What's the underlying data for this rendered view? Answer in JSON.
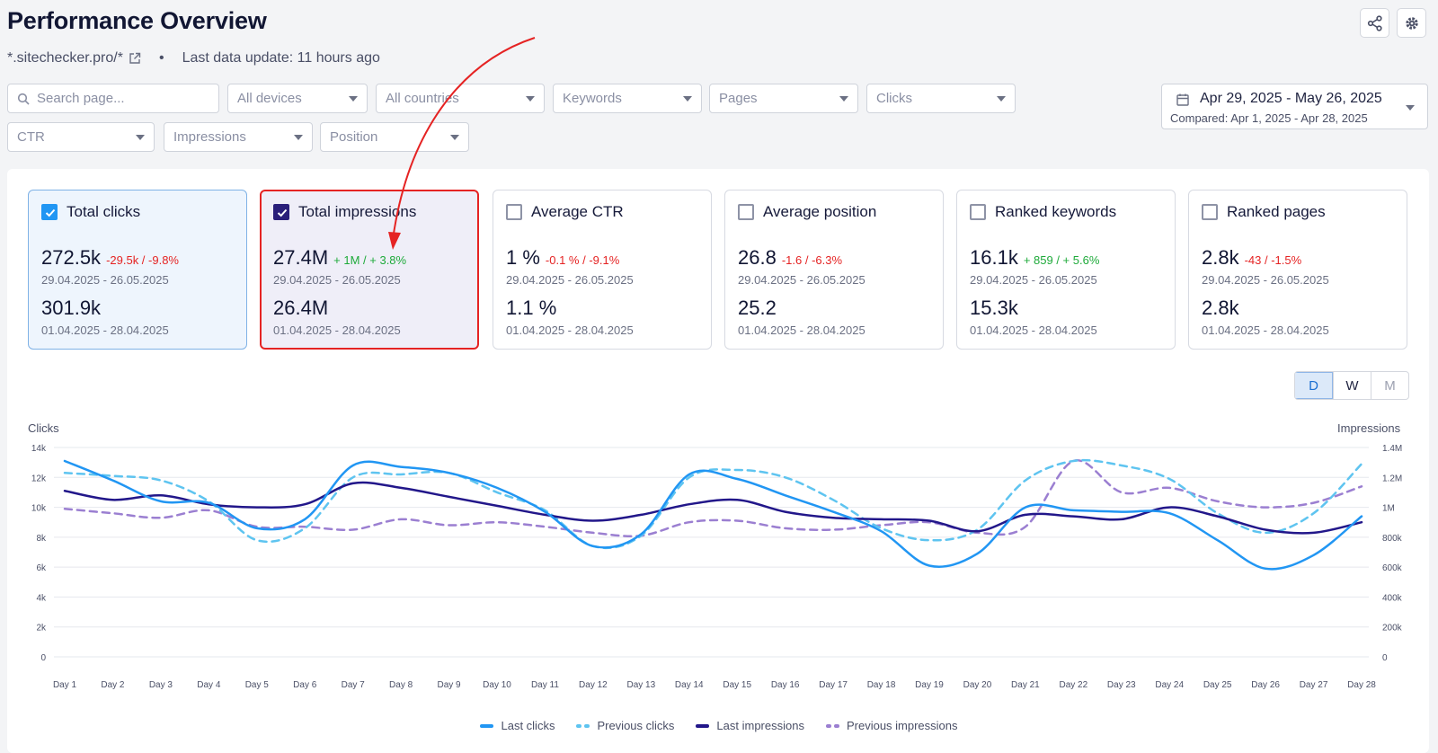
{
  "header": {
    "title": "Performance Overview",
    "site": "*.sitechecker.pro/*",
    "separator": "•",
    "last_update": "Last data update: 11 hours ago"
  },
  "filters": {
    "search_placeholder": "Search page...",
    "devices": "All devices",
    "countries": "All countries",
    "keywords": "Keywords",
    "pages": "Pages",
    "clicks": "Clicks",
    "ctr": "CTR",
    "impressions": "Impressions",
    "position": "Position"
  },
  "date_range": {
    "main": "Apr 29, 2025 - May 26, 2025",
    "compared": "Compared: Apr 1, 2025 - Apr 28, 2025"
  },
  "cards": [
    {
      "title": "Total clicks",
      "checked": true,
      "value": "272.5k",
      "delta": "-29.5k / -9.8%",
      "delta_sign": "neg",
      "period": "29.04.2025 - 26.05.2025",
      "prev_value": "301.9k",
      "prev_period": "01.04.2025 - 28.04.2025"
    },
    {
      "title": "Total impressions",
      "checked": true,
      "value": "27.4M",
      "delta": "+ 1M / + 3.8%",
      "delta_sign": "pos",
      "period": "29.04.2025 - 26.05.2025",
      "prev_value": "26.4M",
      "prev_period": "01.04.2025 - 28.04.2025"
    },
    {
      "title": "Average CTR",
      "checked": false,
      "value": "1 %",
      "delta": "-0.1 % / -9.1%",
      "delta_sign": "neg",
      "period": "29.04.2025 - 26.05.2025",
      "prev_value": "1.1 %",
      "prev_period": "01.04.2025 - 28.04.2025"
    },
    {
      "title": "Average position",
      "checked": false,
      "value": "26.8",
      "delta": "-1.6 / -6.3%",
      "delta_sign": "neg",
      "period": "29.04.2025 - 26.05.2025",
      "prev_value": "25.2",
      "prev_period": "01.04.2025 - 28.04.2025"
    },
    {
      "title": "Ranked keywords",
      "checked": false,
      "value": "16.1k",
      "delta": "+ 859 / + 5.6%",
      "delta_sign": "pos",
      "period": "29.04.2025 - 26.05.2025",
      "prev_value": "15.3k",
      "prev_period": "01.04.2025 - 28.04.2025"
    },
    {
      "title": "Ranked pages",
      "checked": false,
      "value": "2.8k",
      "delta": "-43 / -1.5%",
      "delta_sign": "neg",
      "period": "29.04.2025 - 26.05.2025",
      "prev_value": "2.8k",
      "prev_period": "01.04.2025 - 28.04.2025"
    }
  ],
  "period_toggle": {
    "d": "D",
    "w": "W",
    "m": "M",
    "active": "D"
  },
  "icons": {
    "share": "share-icon",
    "settings": "gear-icon",
    "external": "external-link-icon",
    "search": "search-icon",
    "calendar": "calendar-icon"
  },
  "colors": {
    "last_clicks": "#2196f3",
    "previous_clicks": "#5ec4f0",
    "last_impressions": "#22178a",
    "previous_impressions": "#9b7fd1",
    "highlight": "#e52323"
  },
  "chart_data": {
    "type": "line",
    "ylabel": "Clicks",
    "y2label": "Impressions",
    "ylim": [
      0,
      14000
    ],
    "y2lim": [
      0,
      1400000
    ],
    "yticks": [
      "0",
      "2k",
      "4k",
      "6k",
      "8k",
      "10k",
      "12k",
      "14k"
    ],
    "y2ticks": [
      "0",
      "200k",
      "400k",
      "600k",
      "800k",
      "1M",
      "1.2M",
      "1.4M"
    ],
    "x": [
      "Day 1",
      "Day 2",
      "Day 3",
      "Day 4",
      "Day 5",
      "Day 6",
      "Day 7",
      "Day 8",
      "Day 9",
      "Day 10",
      "Day 11",
      "Day 12",
      "Day 13",
      "Day 14",
      "Day 15",
      "Day 16",
      "Day 17",
      "Day 18",
      "Day 19",
      "Day 20",
      "Day 21",
      "Day 22",
      "Day 23",
      "Day 24",
      "Day 25",
      "Day 26",
      "Day 27",
      "Day 28"
    ],
    "series": [
      {
        "name": "Last clicks",
        "axis": "left",
        "style": "solid",
        "values": [
          13100,
          11800,
          10400,
          10300,
          8600,
          9200,
          12800,
          12700,
          12300,
          11300,
          9700,
          7400,
          8200,
          12200,
          11900,
          10800,
          9700,
          8400,
          6100,
          6900,
          10000,
          9800,
          9700,
          9600,
          7800,
          5900,
          6800,
          9400
        ]
      },
      {
        "name": "Previous clicks",
        "axis": "left",
        "style": "dash",
        "values": [
          12300,
          12100,
          11800,
          10400,
          7800,
          8600,
          12000,
          12200,
          12300,
          11000,
          9800,
          7400,
          8100,
          12000,
          12500,
          12000,
          10500,
          8600,
          7800,
          8500,
          11800,
          13100,
          12800,
          11900,
          9600,
          8300,
          9600,
          12900
        ]
      },
      {
        "name": "Last impressions",
        "axis": "right",
        "style": "solid",
        "values": [
          1110000,
          1050000,
          1080000,
          1020000,
          1000000,
          1020000,
          1160000,
          1130000,
          1070000,
          1010000,
          950000,
          910000,
          950000,
          1020000,
          1050000,
          970000,
          930000,
          920000,
          910000,
          840000,
          950000,
          940000,
          920000,
          1000000,
          940000,
          850000,
          830000,
          900000
        ]
      },
      {
        "name": "Previous impressions",
        "axis": "right",
        "style": "dash",
        "values": [
          990000,
          960000,
          930000,
          980000,
          870000,
          870000,
          850000,
          920000,
          880000,
          900000,
          870000,
          830000,
          810000,
          900000,
          910000,
          860000,
          850000,
          880000,
          900000,
          830000,
          870000,
          1310000,
          1100000,
          1130000,
          1040000,
          1000000,
          1030000,
          1140000
        ]
      }
    ],
    "legend": [
      "Last clicks",
      "Previous clicks",
      "Last impressions",
      "Previous impressions"
    ],
    "legend_position": "bottom",
    "grid": "horizontal"
  }
}
